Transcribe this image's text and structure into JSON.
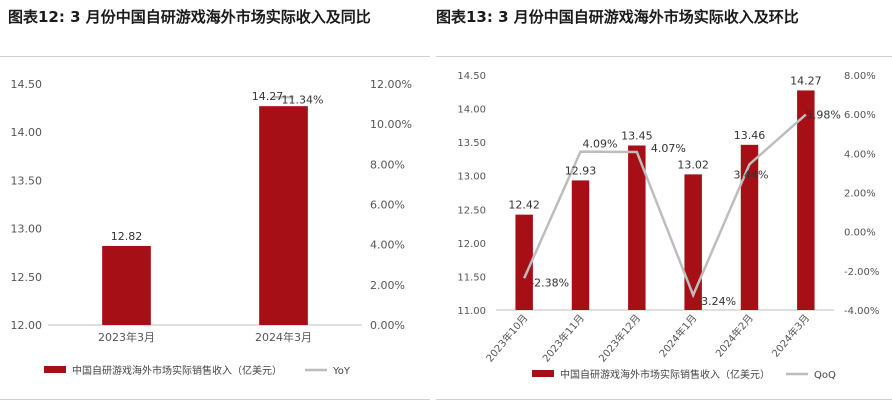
{
  "titles": {
    "left": "图表12:  3 月份中国自研游戏海外市场实际收入及同比",
    "right": "图表13:  3 月份中国自研游戏海外市场实际收入及环比"
  },
  "colors": {
    "bar": "#a50f15",
    "line": "#bdbdbd",
    "axis": "#bfbfbf"
  },
  "chart_data": [
    {
      "type": "bar",
      "categories": [
        "2023年3月",
        "2024年3月"
      ],
      "series": [
        {
          "name": "中国自研游戏海外市场实际销售收入（亿美元）",
          "type": "bar",
          "axis": "left",
          "values": [
            12.82,
            14.27
          ],
          "labels": [
            "12.82",
            "14.27"
          ]
        },
        {
          "name": "YoY",
          "type": "line",
          "axis": "right",
          "values": [
            null,
            11.34
          ],
          "labels": [
            "",
            "11.34%"
          ]
        }
      ],
      "ylim": [
        12.0,
        14.5
      ],
      "yticks": [
        12.0,
        12.5,
        13.0,
        13.5,
        14.0,
        14.5
      ],
      "ytick_labels": [
        "12.00",
        "12.50",
        "13.00",
        "13.50",
        "14.00",
        "14.50"
      ],
      "y2lim": [
        0,
        12
      ],
      "y2ticks": [
        0,
        2,
        4,
        6,
        8,
        10,
        12
      ],
      "y2tick_labels": [
        "0.00%",
        "2.00%",
        "4.00%",
        "6.00%",
        "8.00%",
        "10.00%",
        "12.00%"
      ],
      "legend": "bottom",
      "grid": false
    },
    {
      "type": "bar",
      "categories": [
        "2023年10月",
        "2023年11月",
        "2023年12月",
        "2024年1月",
        "2024年2月",
        "2024年3月"
      ],
      "series": [
        {
          "name": "中国自研游戏海外市场实际销售收入（亿美元）",
          "type": "bar",
          "axis": "left",
          "values": [
            12.42,
            12.93,
            13.45,
            13.02,
            13.46,
            14.27
          ],
          "labels": [
            "12.42",
            "12.93",
            "13.45",
            "13.02",
            "13.46",
            "14.27"
          ]
        },
        {
          "name": "QoQ",
          "type": "line",
          "axis": "right",
          "values": [
            -2.38,
            4.09,
            4.07,
            -3.24,
            3.44,
            5.98
          ],
          "labels": [
            "-2.38%",
            "4.09%",
            "4.07%",
            "-3.24%",
            "3.44%",
            "5.98%"
          ]
        }
      ],
      "ylim": [
        11.0,
        14.5
      ],
      "yticks": [
        11.0,
        11.5,
        12.0,
        12.5,
        13.0,
        13.5,
        14.0,
        14.5
      ],
      "ytick_labels": [
        "11.00",
        "11.50",
        "12.00",
        "12.50",
        "13.00",
        "13.50",
        "14.00",
        "14.50"
      ],
      "y2lim": [
        -4,
        8
      ],
      "y2ticks": [
        -4,
        -2,
        0,
        2,
        4,
        6,
        8
      ],
      "y2tick_labels": [
        "-4.00%",
        "-2.00%",
        "0.00%",
        "2.00%",
        "4.00%",
        "6.00%",
        "8.00%"
      ],
      "legend": "bottom",
      "grid": false
    }
  ]
}
